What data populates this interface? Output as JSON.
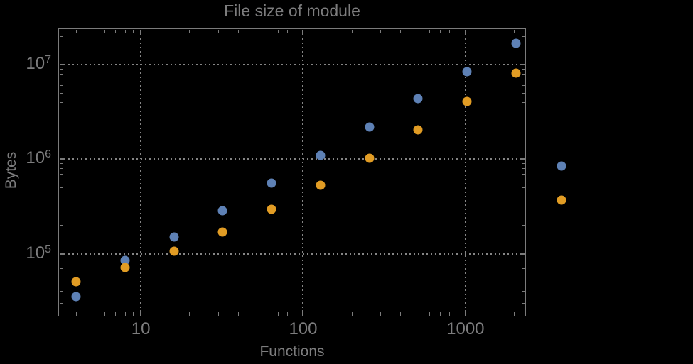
{
  "chart_data": {
    "type": "scatter",
    "title": "File size of module",
    "xlabel": "Functions",
    "ylabel": "Bytes",
    "x_scale": "log",
    "y_scale": "log",
    "xlim": [
      3.1,
      2360
    ],
    "ylim": [
      21700,
      24200000
    ],
    "grid": "dotted",
    "legend": "none",
    "x_gridlines": [
      10,
      100,
      1000
    ],
    "y_gridlines": [
      100000,
      1000000,
      10000000
    ],
    "x_ticks": [
      {
        "label": "10",
        "value": 10
      },
      {
        "label": "100",
        "value": 100
      },
      {
        "label": "1000",
        "value": 1000
      }
    ],
    "y_ticks": [
      {
        "base": "10",
        "exp": "5",
        "value": 100000
      },
      {
        "base": "10",
        "exp": "6",
        "value": 1000000
      },
      {
        "base": "10",
        "exp": "7",
        "value": 10000000
      }
    ],
    "x_minor_ticks": [
      4,
      5,
      6,
      7,
      8,
      9,
      20,
      30,
      40,
      50,
      60,
      70,
      80,
      90,
      200,
      300,
      400,
      500,
      600,
      700,
      800,
      900,
      2000
    ],
    "y_minor_ticks": [
      30000,
      40000,
      50000,
      60000,
      70000,
      80000,
      90000,
      200000,
      300000,
      400000,
      500000,
      600000,
      700000,
      800000,
      900000,
      2000000,
      3000000,
      4000000,
      5000000,
      6000000,
      7000000,
      8000000,
      9000000,
      20000000
    ],
    "x": [
      4,
      8,
      16,
      32,
      64,
      128,
      256,
      512,
      1024,
      2048
    ],
    "series": [
      {
        "name": "blue",
        "color": "#5E81B5",
        "y": [
          35000,
          85000,
          150000,
          285000,
          558000,
          1100000,
          2190000,
          4370000,
          8400000,
          16800000
        ]
      },
      {
        "name": "orange",
        "color": "#E19C24",
        "y": [
          50500,
          71500,
          106000,
          169000,
          295000,
          530000,
          1020000,
          2040000,
          4070000,
          8130000
        ]
      }
    ],
    "extra_points_right_of_frame": [
      {
        "series": "blue",
        "color": "#5E81B5",
        "x": 3900,
        "y": 845000
      },
      {
        "series": "orange",
        "color": "#E19C24",
        "x": 3900,
        "y": 370000
      }
    ],
    "marker_size_px": 13
  },
  "colors": {
    "background": "#000000",
    "frame": "#7b7b7b",
    "gridline": "#858585",
    "text": "#7d7d7e",
    "series_blue": "#5E81B5",
    "series_orange": "#E19C24"
  }
}
